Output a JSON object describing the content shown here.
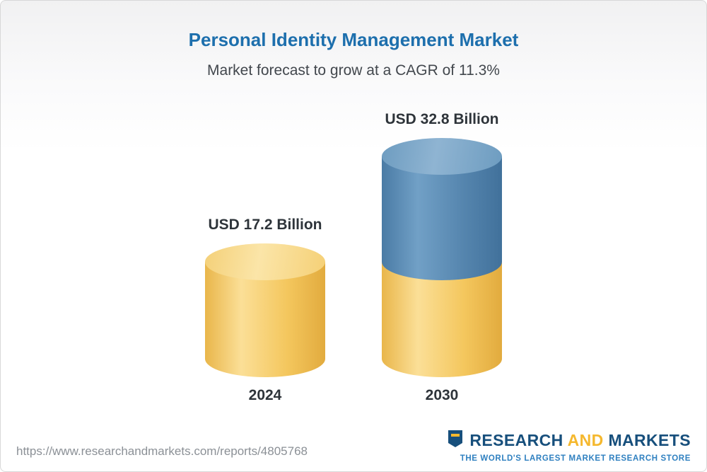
{
  "header": {
    "title": "Personal Identity Management Market",
    "subtitle": "Market forecast to grow at a CAGR of 11.3%"
  },
  "chart_data": {
    "type": "bar",
    "variant": "3d-cylinder-infographic",
    "title": "Personal Identity Management Market",
    "subtitle": "Market forecast to grow at a CAGR of 11.3%",
    "categories": [
      "2024",
      "2030"
    ],
    "values": [
      17.2,
      32.8
    ],
    "unit": "USD Billion",
    "value_labels": [
      "USD 17.2 Billion",
      "USD 32.8 Billion"
    ],
    "cagr_percent": 11.3,
    "series_note": "2030 cylinder shows 2024 base value in yellow plus forecast growth in blue",
    "colors": {
      "base_segment": "#f2c14e",
      "growth_segment": "#55809e",
      "title_accent": "#1d6fad"
    },
    "ylim": [
      0,
      35
    ],
    "grid": false,
    "legend": false
  },
  "footer": {
    "url": "https://www.researchandmarkets.com/reports/4805768",
    "logo": {
      "word1": "RESEARCH",
      "word2": "AND",
      "word3": "MARKETS",
      "tagline": "THE WORLD'S LARGEST MARKET RESEARCH STORE"
    }
  }
}
